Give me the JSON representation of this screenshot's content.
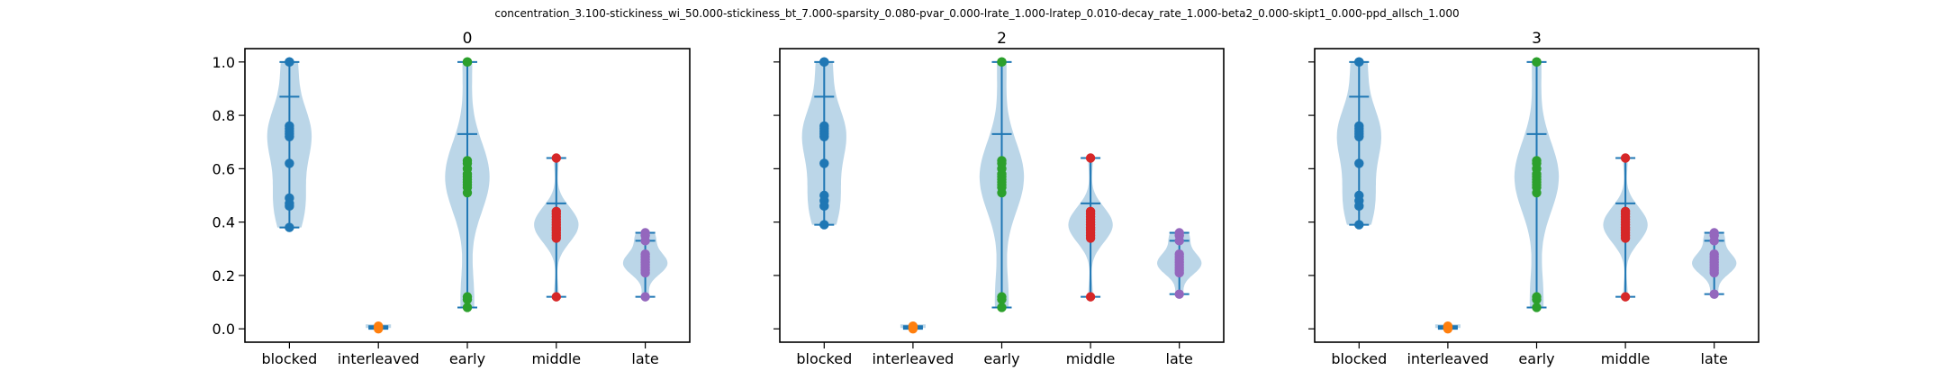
{
  "figure": {
    "suptitle": "concentration_3.100-stickiness_wi_50.000-stickiness_bt_7.000-sparsity_0.080-pvar_0.000-lrate_1.000-lratep_0.010-decay_rate_1.000-beta2_0.000-skipt1_0.000-ppd_allsch_1.000"
  },
  "colors": {
    "violin_fill": "#1f77b4",
    "lines": "#1f77b4",
    "blocked": "#1f77b4",
    "interleaved": "#ff7f0e",
    "early": "#2ca02c",
    "middle": "#d62728",
    "late": "#9467bd"
  },
  "chart_data": [
    {
      "type": "violin",
      "title": "0",
      "categories": [
        "blocked",
        "interleaved",
        "early",
        "middle",
        "late"
      ],
      "ylim": [
        -0.05,
        1.05
      ],
      "yticks": [
        "0.0",
        "0.2",
        "0.4",
        "0.6",
        "0.8",
        "1.0"
      ],
      "show_ytick_labels": true,
      "series": [
        {
          "category": "blocked",
          "min": 0.38,
          "max": 1.0,
          "mean": 0.87,
          "points": [
            1.0,
            1.0,
            0.76,
            0.75,
            0.74,
            0.73,
            0.72,
            0.62,
            0.49,
            0.47,
            0.46,
            0.38
          ]
        },
        {
          "category": "interleaved",
          "min": 0.0,
          "max": 0.01,
          "mean": 0.005,
          "points": [
            0.0,
            0.005,
            0.01
          ]
        },
        {
          "category": "early",
          "min": 0.08,
          "max": 1.0,
          "mean": 0.73,
          "points": [
            1.0,
            1.0,
            0.63,
            0.62,
            0.6,
            0.58,
            0.57,
            0.56,
            0.55,
            0.54,
            0.53,
            0.51,
            0.12,
            0.11,
            0.08
          ]
        },
        {
          "category": "middle",
          "min": 0.12,
          "max": 0.64,
          "mean": 0.47,
          "points": [
            0.64,
            0.44,
            0.43,
            0.42,
            0.41,
            0.4,
            0.39,
            0.38,
            0.37,
            0.36,
            0.35,
            0.34,
            0.12
          ]
        },
        {
          "category": "late",
          "min": 0.12,
          "max": 0.36,
          "mean": 0.33,
          "points": [
            0.36,
            0.35,
            0.33,
            0.28,
            0.27,
            0.26,
            0.25,
            0.24,
            0.23,
            0.22,
            0.21,
            0.12
          ]
        }
      ]
    },
    {
      "type": "violin",
      "title": "2",
      "categories": [
        "blocked",
        "interleaved",
        "early",
        "middle",
        "late"
      ],
      "ylim": [
        -0.05,
        1.05
      ],
      "yticks": [
        "0.0",
        "0.2",
        "0.4",
        "0.6",
        "0.8",
        "1.0"
      ],
      "show_ytick_labels": false,
      "series": [
        {
          "category": "blocked",
          "min": 0.39,
          "max": 1.0,
          "mean": 0.87,
          "points": [
            1.0,
            1.0,
            0.76,
            0.75,
            0.74,
            0.73,
            0.72,
            0.62,
            0.5,
            0.48,
            0.46,
            0.39
          ]
        },
        {
          "category": "interleaved",
          "min": 0.0,
          "max": 0.01,
          "mean": 0.005,
          "points": [
            0.0,
            0.005,
            0.01
          ]
        },
        {
          "category": "early",
          "min": 0.08,
          "max": 1.0,
          "mean": 0.73,
          "points": [
            1.0,
            1.0,
            0.63,
            0.62,
            0.6,
            0.58,
            0.57,
            0.56,
            0.55,
            0.54,
            0.53,
            0.51,
            0.12,
            0.11,
            0.08
          ]
        },
        {
          "category": "middle",
          "min": 0.12,
          "max": 0.64,
          "mean": 0.47,
          "points": [
            0.64,
            0.44,
            0.43,
            0.42,
            0.41,
            0.4,
            0.39,
            0.38,
            0.37,
            0.36,
            0.35,
            0.34,
            0.12
          ]
        },
        {
          "category": "late",
          "min": 0.13,
          "max": 0.36,
          "mean": 0.33,
          "points": [
            0.36,
            0.35,
            0.33,
            0.28,
            0.27,
            0.26,
            0.25,
            0.24,
            0.23,
            0.22,
            0.21,
            0.13
          ]
        }
      ]
    },
    {
      "type": "violin",
      "title": "3",
      "categories": [
        "blocked",
        "interleaved",
        "early",
        "middle",
        "late"
      ],
      "ylim": [
        -0.05,
        1.05
      ],
      "yticks": [
        "0.0",
        "0.2",
        "0.4",
        "0.6",
        "0.8",
        "1.0"
      ],
      "show_ytick_labels": false,
      "series": [
        {
          "category": "blocked",
          "min": 0.39,
          "max": 1.0,
          "mean": 0.87,
          "points": [
            1.0,
            1.0,
            0.76,
            0.75,
            0.74,
            0.73,
            0.72,
            0.62,
            0.5,
            0.48,
            0.46,
            0.39
          ]
        },
        {
          "category": "interleaved",
          "min": 0.0,
          "max": 0.01,
          "mean": 0.005,
          "points": [
            0.0,
            0.005,
            0.01
          ]
        },
        {
          "category": "early",
          "min": 0.08,
          "max": 1.0,
          "mean": 0.73,
          "points": [
            1.0,
            1.0,
            0.63,
            0.62,
            0.6,
            0.58,
            0.57,
            0.56,
            0.55,
            0.54,
            0.53,
            0.51,
            0.12,
            0.11,
            0.08
          ]
        },
        {
          "category": "middle",
          "min": 0.12,
          "max": 0.64,
          "mean": 0.47,
          "points": [
            0.64,
            0.44,
            0.43,
            0.42,
            0.41,
            0.4,
            0.39,
            0.38,
            0.37,
            0.36,
            0.35,
            0.34,
            0.12
          ]
        },
        {
          "category": "late",
          "min": 0.13,
          "max": 0.36,
          "mean": 0.33,
          "points": [
            0.36,
            0.35,
            0.33,
            0.28,
            0.27,
            0.26,
            0.25,
            0.24,
            0.23,
            0.22,
            0.21,
            0.13
          ]
        }
      ]
    }
  ]
}
